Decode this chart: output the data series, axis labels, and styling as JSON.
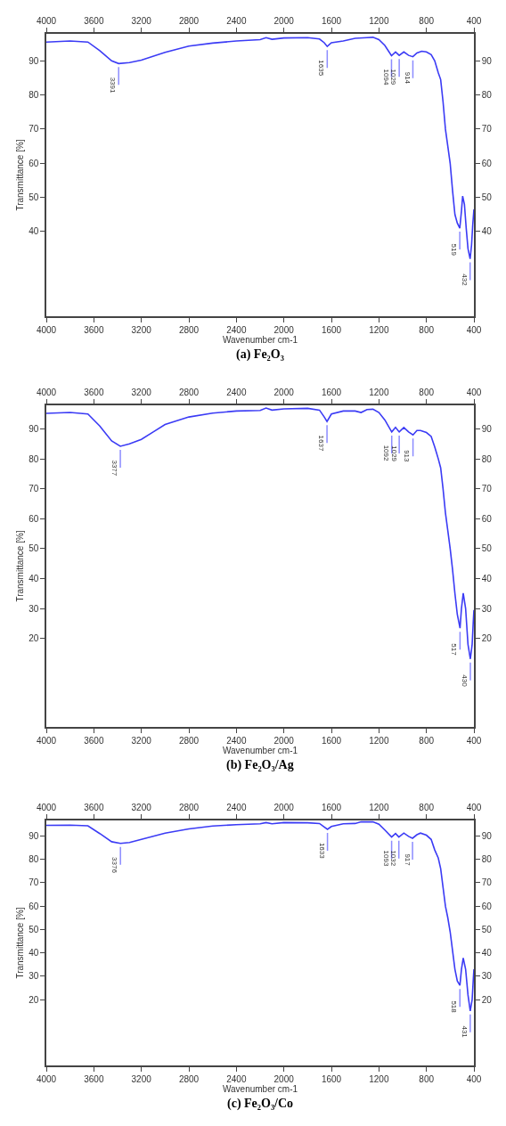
{
  "chart_data": [
    {
      "type": "line",
      "title": "(a) Fe₂O₃",
      "xlabel": "Wavenumber cm-1",
      "ylabel": "Transmittance [%]",
      "x": [
        4000,
        3800,
        3650,
        3550,
        3450,
        3391,
        3300,
        3200,
        3000,
        2800,
        2600,
        2400,
        2200,
        2150,
        2100,
        2000,
        1800,
        1700,
        1660,
        1635,
        1600,
        1500,
        1400,
        1300,
        1250,
        1200,
        1150,
        1094,
        1060,
        1029,
        990,
        950,
        914,
        880,
        840,
        800,
        760,
        730,
        700,
        680,
        660,
        640,
        620,
        600,
        580,
        560,
        540,
        519,
        505,
        495,
        480,
        465,
        450,
        432,
        420,
        410,
        400
      ],
      "series": [
        {
          "color": "#3b3bf5",
          "values": [
            95.5,
            95.8,
            95.5,
            93,
            90,
            89.2,
            89.5,
            90.2,
            92.5,
            94.3,
            95.2,
            95.8,
            96.2,
            96.8,
            96.3,
            96.7,
            96.8,
            96.4,
            95.3,
            94.2,
            95.3,
            95.8,
            96.6,
            96.8,
            96.9,
            96.2,
            94.5,
            91.5,
            92.6,
            91.6,
            92.6,
            91.6,
            91.2,
            92.3,
            92.8,
            92.6,
            91.8,
            90,
            86.5,
            84.5,
            78,
            70,
            65,
            60,
            52,
            45,
            42.5,
            41,
            46,
            50.4,
            48,
            41,
            35,
            32,
            36,
            42,
            46.5
          ]
        }
      ],
      "xlim": [
        4000,
        400
      ],
      "xticks": [
        4000,
        3600,
        3200,
        2800,
        2400,
        2000,
        1600,
        1200,
        800,
        400
      ],
      "x2lim": [
        4000,
        400
      ],
      "x2ticks": [
        4000,
        3600,
        3200,
        2800,
        2400,
        2000,
        1600,
        1200,
        800,
        400
      ],
      "ylim": [
        15.2,
        97.9
      ],
      "yticks": [
        40,
        50,
        60,
        70,
        80,
        90
      ],
      "y2lim": [
        15.2,
        97.9
      ],
      "y2ticks": [
        40,
        50,
        60,
        70,
        80,
        90
      ],
      "annotations": [
        {
          "text": "3391",
          "x": 3391,
          "y": 89.2
        },
        {
          "text": "1635",
          "x": 1635,
          "y": 94.2
        },
        {
          "text": "1094",
          "x": 1094,
          "y": 91.5
        },
        {
          "text": "1029",
          "x": 1029,
          "y": 91.6
        },
        {
          "text": "914",
          "x": 914,
          "y": 91.2
        },
        {
          "text": "519",
          "x": 519,
          "y": 41
        },
        {
          "text": "432",
          "x": 432,
          "y": 32
        }
      ]
    },
    {
      "type": "line",
      "title": "(b) Fe₂O₃/Ag",
      "xlabel": "Wavenumber cm-1",
      "ylabel": "Transmittance [%]",
      "x": [
        4000,
        3800,
        3650,
        3550,
        3450,
        3377,
        3300,
        3200,
        3100,
        3000,
        2800,
        2600,
        2400,
        2200,
        2150,
        2100,
        2000,
        1800,
        1700,
        1660,
        1637,
        1600,
        1500,
        1400,
        1350,
        1300,
        1250,
        1200,
        1150,
        1092,
        1060,
        1029,
        990,
        950,
        913,
        880,
        850,
        800,
        760,
        730,
        700,
        680,
        660,
        640,
        620,
        600,
        580,
        560,
        540,
        517,
        505,
        490,
        470,
        450,
        430,
        415,
        405,
        400
      ],
      "series": [
        {
          "color": "#3b3bf5",
          "values": [
            95.2,
            95.5,
            95,
            91,
            86,
            84.2,
            85,
            86.5,
            89,
            91.5,
            94,
            95.3,
            96,
            96.2,
            97,
            96.3,
            96.7,
            96.9,
            96.3,
            94,
            92.5,
            95,
            96,
            96,
            95.5,
            96.5,
            96.6,
            95.5,
            93,
            89,
            90.5,
            89,
            90.5,
            89,
            88,
            89.5,
            89.5,
            88.8,
            87.5,
            84,
            80,
            77,
            70,
            62,
            56,
            50,
            43,
            35,
            28,
            23.4,
            30,
            35.1,
            30,
            18,
            13.1,
            18,
            26,
            29.5
          ]
        }
      ],
      "xlim": [
        4000,
        400
      ],
      "xticks": [
        4000,
        3600,
        3200,
        2800,
        2400,
        2000,
        1600,
        1200,
        800,
        400
      ],
      "x2lim": [
        4000,
        400
      ],
      "x2ticks": [
        4000,
        3600,
        3200,
        2800,
        2400,
        2000,
        1600,
        1200,
        800,
        400
      ],
      "ylim": [
        -9.6,
        97.9
      ],
      "yticks": [
        20,
        30,
        40,
        50,
        60,
        70,
        80,
        90
      ],
      "y2lim": [
        -9.6,
        97.9
      ],
      "y2ticks": [
        20,
        30,
        40,
        50,
        60,
        70,
        80,
        90
      ],
      "annotations": [
        {
          "text": "3377",
          "x": 3377,
          "y": 84.2
        },
        {
          "text": "1637",
          "x": 1637,
          "y": 92.5
        },
        {
          "text": "1092",
          "x": 1092,
          "y": 89
        },
        {
          "text": "1029",
          "x": 1029,
          "y": 89
        },
        {
          "text": "913",
          "x": 913,
          "y": 88
        },
        {
          "text": "517",
          "x": 517,
          "y": 23.4
        },
        {
          "text": "430",
          "x": 430,
          "y": 13.1
        }
      ]
    },
    {
      "type": "line",
      "title": "(c) Fe₂O₃/Co",
      "xlabel": "Wavenumber cm-1",
      "ylabel": "Transmittance [%]",
      "x": [
        4000,
        3800,
        3650,
        3550,
        3450,
        3376,
        3300,
        3200,
        3000,
        2800,
        2600,
        2400,
        2200,
        2150,
        2100,
        2000,
        1800,
        1700,
        1660,
        1633,
        1600,
        1500,
        1400,
        1350,
        1250,
        1200,
        1150,
        1093,
        1060,
        1032,
        990,
        950,
        917,
        880,
        850,
        800,
        760,
        730,
        700,
        680,
        660,
        640,
        620,
        600,
        580,
        560,
        540,
        518,
        505,
        490,
        470,
        450,
        431,
        415,
        405,
        400
      ],
      "series": [
        {
          "color": "#3b3bf5",
          "values": [
            94.5,
            94.6,
            94.3,
            91,
            87.5,
            86.8,
            87.2,
            88.5,
            91.2,
            93,
            94.2,
            94.8,
            95.2,
            95.7,
            95.2,
            95.7,
            95.6,
            95.3,
            93.8,
            92.8,
            94,
            95.2,
            95.3,
            96,
            96,
            95,
            92.5,
            89.5,
            91,
            89.5,
            91.2,
            89.8,
            89,
            90.5,
            91.2,
            90.3,
            88.5,
            84,
            80.5,
            76,
            68,
            60,
            55,
            49,
            41,
            33,
            28,
            26.1,
            33,
            37.8,
            33,
            22,
            15.2,
            20,
            29,
            33
          ]
        }
      ],
      "xlim": [
        4000,
        400
      ],
      "xticks": [
        4000,
        3600,
        3200,
        2800,
        2400,
        2000,
        1600,
        1200,
        800,
        400
      ],
      "x2lim": [
        4000,
        400
      ],
      "x2ticks": [
        4000,
        3600,
        3200,
        2800,
        2400,
        2000,
        1600,
        1200,
        800,
        400
      ],
      "ylim": [
        -8.1,
        96.6
      ],
      "yticks": [
        20,
        30,
        40,
        50,
        60,
        70,
        80,
        90
      ],
      "y2lim": [
        -8.1,
        96.6
      ],
      "y2ticks": [
        20,
        30,
        40,
        50,
        60,
        70,
        80,
        90
      ],
      "annotations": [
        {
          "text": "3376",
          "x": 3376,
          "y": 86.8
        },
        {
          "text": "1633",
          "x": 1633,
          "y": 92.8
        },
        {
          "text": "1093",
          "x": 1093,
          "y": 89.5
        },
        {
          "text": "1032",
          "x": 1032,
          "y": 89.5
        },
        {
          "text": "917",
          "x": 917,
          "y": 89
        },
        {
          "text": "518",
          "x": 518,
          "y": 26.1
        },
        {
          "text": "431",
          "x": 431,
          "y": 15.2
        }
      ]
    }
  ]
}
